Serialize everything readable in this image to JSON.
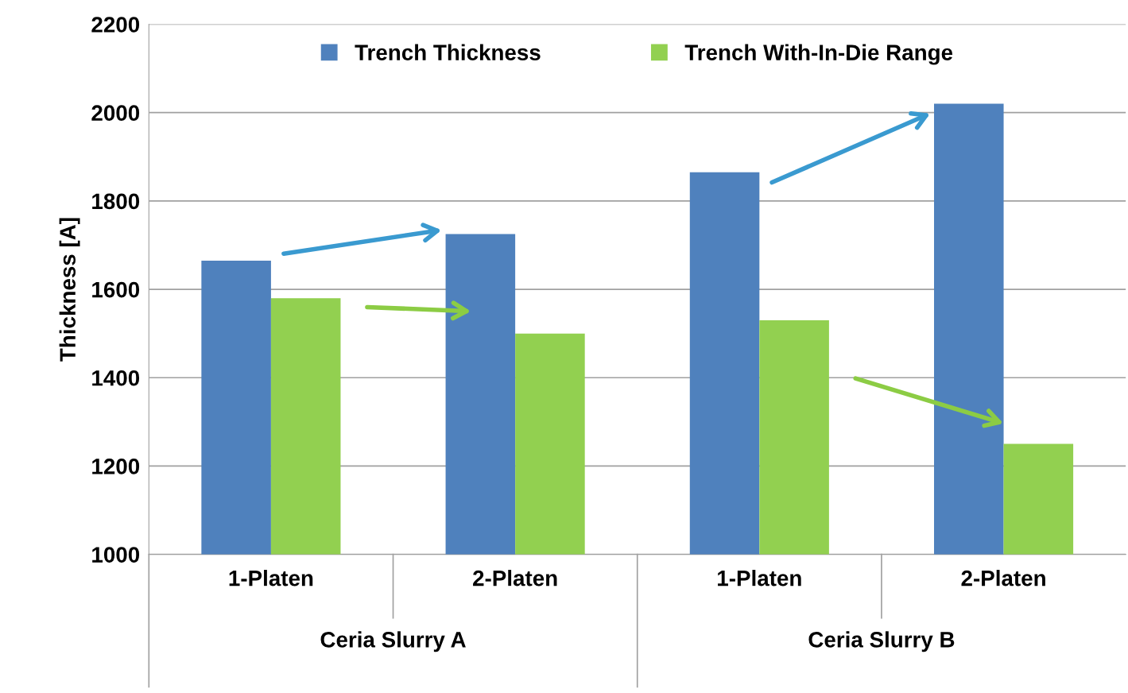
{
  "chart_data": {
    "type": "bar",
    "ylabel": "Thickness [A]",
    "categories": [
      "1-Platen",
      "2-Platen",
      "1-Platen",
      "2-Platen"
    ],
    "series": [
      {
        "name": "Trench Thickness",
        "color": "#4f81bd",
        "values": [
          1665,
          1725,
          1865,
          2020
        ]
      },
      {
        "name": "Trench With-In-Die Range",
        "color": "#92d050",
        "values": [
          1580,
          1500,
          1530,
          1250
        ]
      }
    ],
    "annotations": [
      "Ceria Slurry A",
      "Ceria Slurry B"
    ],
    "ylim": [
      1000,
      2200
    ],
    "yticks": [
      1000,
      1200,
      1400,
      1600,
      1800,
      2000,
      2200
    ],
    "grid": "y",
    "legend": "top"
  }
}
